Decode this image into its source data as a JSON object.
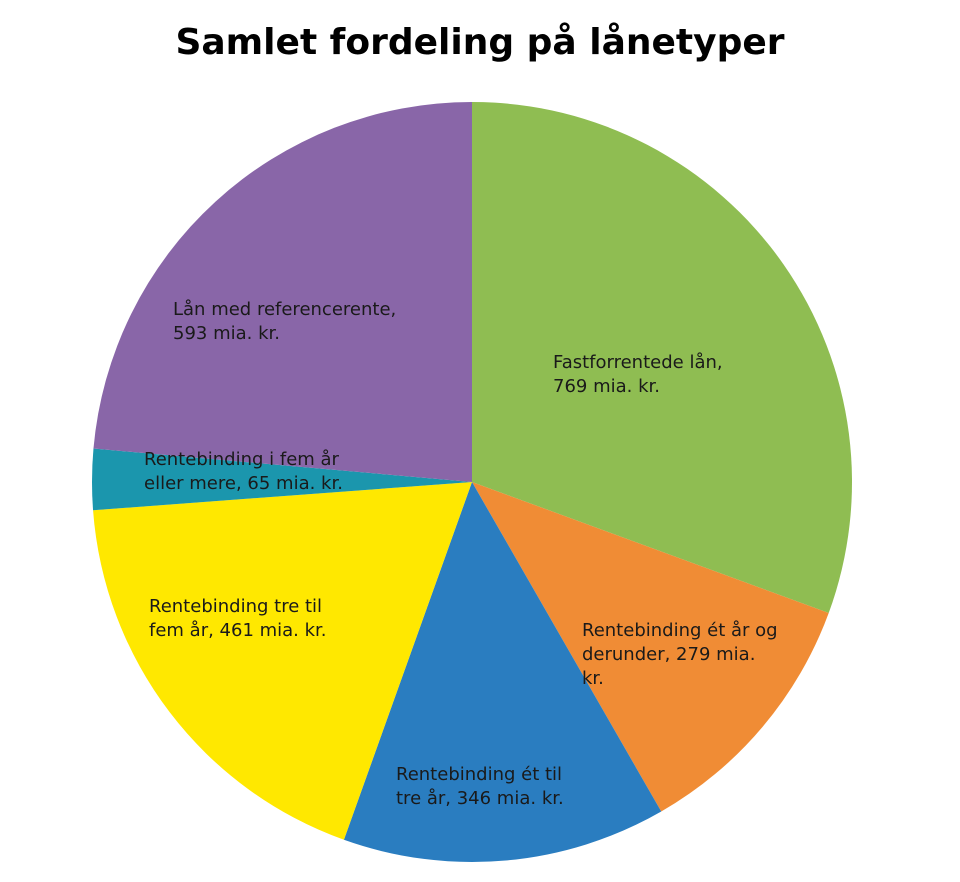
{
  "chart_data": {
    "type": "pie",
    "title": "Samlet fordeling på lånetyper",
    "start_angle_deg": 0,
    "direction": "clockwise",
    "slices": [
      {
        "label": "Fastforrentede lån",
        "value": 769,
        "unit": "mia. kr.",
        "color": "#8fbd52",
        "label_lines": [
          "Fastforrentede lån,",
          "769 mia. kr."
        ]
      },
      {
        "label": "Rentebinding ét år og derunder",
        "value": 279,
        "unit": "mia. kr.",
        "color": "#f08c35",
        "label_lines": [
          "Rentebinding ét år og",
          "derunder, 279 mia.",
          "kr."
        ]
      },
      {
        "label": "Rentebinding ét til tre år",
        "value": 346,
        "unit": "mia. kr.",
        "color": "#2a7dc0",
        "label_lines": [
          "Rentebinding ét til",
          "tre år, 346 mia. kr."
        ]
      },
      {
        "label": "Rentebinding tre til fem år",
        "value": 461,
        "unit": "mia. kr.",
        "color": "#ffe800",
        "label_lines": [
          "Rentebinding tre til",
          "fem år, 461 mia. kr."
        ]
      },
      {
        "label": "Rentebinding i fem år eller mere",
        "value": 65,
        "unit": "mia. kr.",
        "color": "#1b96ad",
        "label_lines": [
          "Rentebinding i fem år",
          "eller mere, 65 mia. kr."
        ]
      },
      {
        "label": "Lån med referencerente",
        "value": 593,
        "unit": "mia. kr.",
        "color": "#8966a8",
        "label_lines": [
          "Lån med referencerente,",
          "593 mia. kr."
        ]
      }
    ]
  }
}
